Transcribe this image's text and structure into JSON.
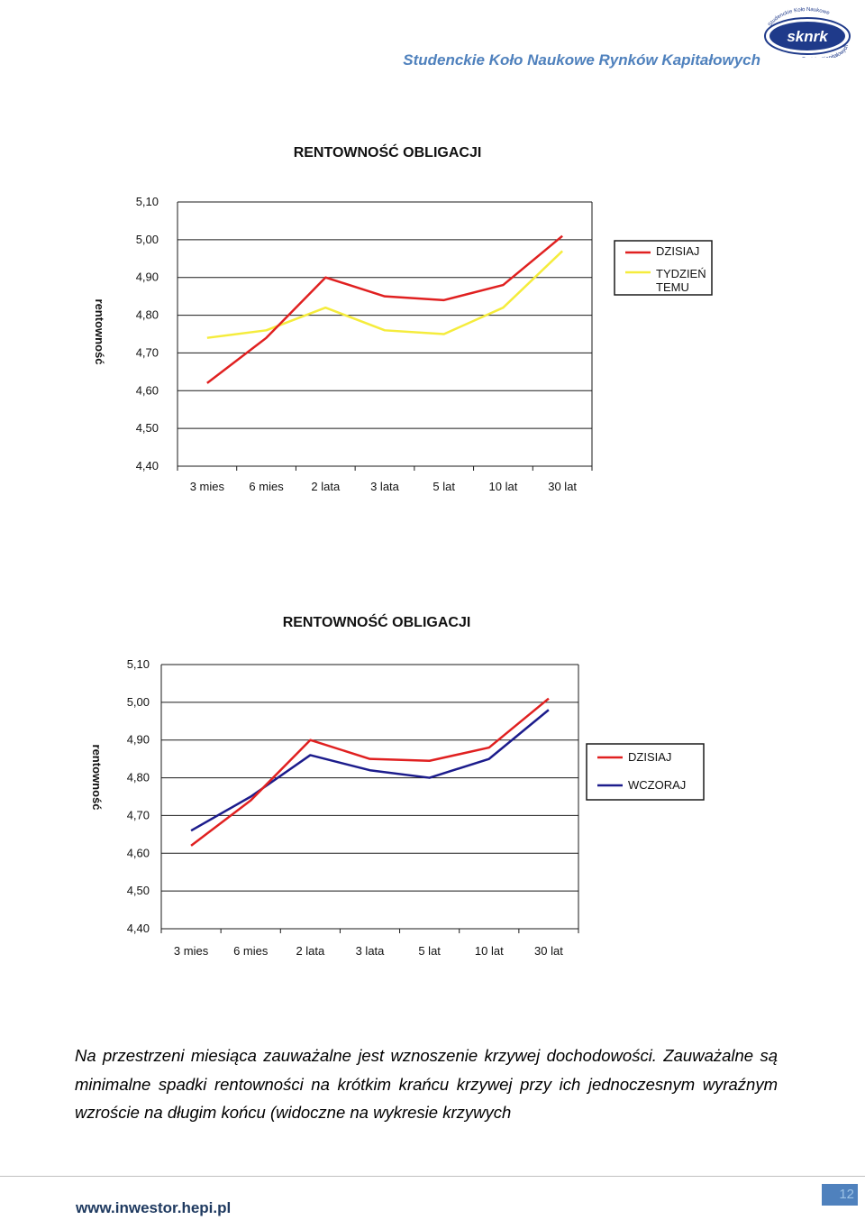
{
  "header": {
    "title": "Studenckie Koło Naukowe Rynków Kapitałowych",
    "logo_text": "sknrk",
    "logo_arc_top": "Studenckie Koło Naukowe",
    "logo_arc_bottom": "Rynków Kapitałowych"
  },
  "chart_data": [
    {
      "type": "line",
      "title": "RENTOWNOŚĆ OBLIGACJI",
      "ylabel": "rentowność",
      "xlabel": "",
      "categories": [
        "3 mies",
        "6 mies",
        "2 lata",
        "3 lata",
        "5 lat",
        "10 lat",
        "30 lat"
      ],
      "ylim": [
        4.4,
        5.1
      ],
      "yticks": [
        "5,10",
        "5,00",
        "4,90",
        "4,80",
        "4,70",
        "4,60",
        "4,50",
        "4,40"
      ],
      "grid": true,
      "legend": "right",
      "series": [
        {
          "name": "DZISIAJ",
          "color": "#e02020",
          "values": [
            4.62,
            4.74,
            4.9,
            4.85,
            4.84,
            4.88,
            5.01
          ]
        },
        {
          "name": "TYDZIEŃ TEMU",
          "color": "#f5ec3c",
          "values": [
            4.74,
            4.76,
            4.82,
            4.76,
            4.75,
            4.82,
            4.97
          ]
        }
      ]
    },
    {
      "type": "line",
      "title": "RENTOWNOŚĆ OBLIGACJI",
      "ylabel": "rentowność",
      "xlabel": "",
      "categories": [
        "3 mies",
        "6 mies",
        "2 lata",
        "3 lata",
        "5 lat",
        "10 lat",
        "30 lat"
      ],
      "ylim": [
        4.4,
        5.1
      ],
      "yticks": [
        "5,10",
        "5,00",
        "4,90",
        "4,80",
        "4,70",
        "4,60",
        "4,50",
        "4,40"
      ],
      "grid": true,
      "legend": "right",
      "series": [
        {
          "name": "DZISIAJ",
          "color": "#e02020",
          "values": [
            4.62,
            4.74,
            4.9,
            4.85,
            4.845,
            4.88,
            5.01
          ]
        },
        {
          "name": "WCZORAJ",
          "color": "#1c1c8c",
          "values": [
            4.66,
            4.75,
            4.86,
            4.82,
            4.8,
            4.85,
            4.98
          ]
        }
      ]
    }
  ],
  "body": {
    "paragraph": "Na przestrzeni miesiąca zauważalne jest wznoszenie krzywej dochodowości. Zauważalne są minimalne spadki rentowności na krótkim krańcu krzywej przy ich jednoczesnym wyraźnym wzroście na długim końcu (widoczne na wykresie krzywych"
  },
  "footer": {
    "url": "www.inwestor.hepi.pl",
    "page_number": "12"
  }
}
